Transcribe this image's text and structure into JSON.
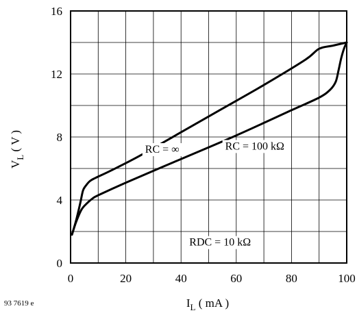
{
  "figure_ref": "93 7619 e",
  "chart_data": {
    "type": "line",
    "xlabel": {
      "main": "I",
      "sub": "L",
      "rest": " ( mA )"
    },
    "ylabel": {
      "main": "V",
      "sub": "L",
      "rest": " ( V )"
    },
    "xlim": [
      0,
      100
    ],
    "ylim": [
      0,
      16
    ],
    "x_ticks": [
      0,
      20,
      40,
      60,
      80,
      100
    ],
    "y_ticks": [
      0,
      4,
      8,
      12,
      16
    ],
    "x_tick_labels": [
      "0",
      "20",
      "40",
      "60",
      "80",
      "100"
    ],
    "y_tick_labels": [
      "0",
      "4",
      "8",
      "12",
      "16"
    ],
    "grid": true,
    "series": [
      {
        "name": "RC = ∞",
        "x": [
          0.5,
          2,
          3.5,
          4.5,
          5.5,
          7,
          9,
          15,
          25,
          40,
          55,
          70,
          85,
          90,
          95,
          100
        ],
        "y": [
          1.8,
          2.7,
          3.8,
          4.6,
          4.9,
          5.2,
          5.4,
          5.9,
          6.8,
          8.3,
          9.8,
          11.3,
          12.9,
          13.6,
          13.8,
          14.0
        ]
      },
      {
        "name": "RC = 100 kΩ",
        "x": [
          0.5,
          2,
          4,
          6,
          8,
          10,
          20,
          40,
          60,
          80,
          90,
          94,
          96,
          97,
          98,
          99,
          100
        ],
        "y": [
          1.8,
          2.6,
          3.4,
          3.8,
          4.1,
          4.3,
          5.1,
          6.6,
          8.1,
          9.7,
          10.5,
          11.0,
          11.5,
          12.2,
          13.0,
          13.6,
          14.0
        ]
      }
    ],
    "annotations": [
      {
        "text": "RC = ∞",
        "x": 27,
        "y": 7.0
      },
      {
        "text": "RC = 100 kΩ",
        "x": 56,
        "y": 7.2
      },
      {
        "text": "RDC = 10 kΩ",
        "x": 43,
        "y": 1.1
      }
    ]
  }
}
